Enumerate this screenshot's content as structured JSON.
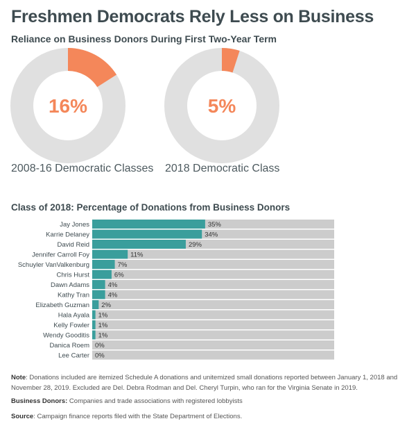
{
  "title": "Freshmen Democrats Rely Less on Business",
  "chart_data": [
    {
      "type": "pie",
      "title": "Reliance on Business Donors During First Two-Year Term",
      "donuts": [
        {
          "label": "2008-16 Democratic Classes",
          "value": 16,
          "display": "16%"
        },
        {
          "label": "2018 Democratic Class",
          "value": 5,
          "display": "5%"
        }
      ],
      "colors": {
        "value": "#f4875a",
        "rest": "#e0e0e0"
      }
    },
    {
      "type": "bar",
      "orientation": "horizontal",
      "title": "Class of 2018: Percentage of Donations from Business Donors",
      "categories": [
        "Jay Jones",
        "Karrie Delaney",
        "David Reid",
        "Jennifer Carroll Foy",
        "Schuyler VanValkenburg",
        "Chris Hurst",
        "Dawn Adams",
        "Kathy Tran",
        "Elizabeth Guzman",
        "Hala Ayala",
        "Kelly Fowler",
        "Wendy Gooditis",
        "Danica Roem",
        "Lee Carter"
      ],
      "values": [
        35,
        34,
        29,
        11,
        7,
        6,
        4,
        4,
        2,
        1,
        1,
        1,
        0,
        0
      ],
      "labels": [
        "35%",
        "34%",
        "29%",
        "11%",
        "7%",
        "6%",
        "4%",
        "4%",
        "2%",
        "1%",
        "1%",
        "1%",
        "0%",
        "0%"
      ],
      "xlim": [
        0,
        75
      ],
      "colors": {
        "bar": "#3a9e9c",
        "track": "#cccccc"
      }
    }
  ],
  "notes": {
    "note_label": "Note",
    "note_text": ": Donations included are itemized Schedule A donations and unitemized small donations reported between January 1, 2018 and November 28, 2019. Excluded are Del. Debra Rodman and Del. Cheryl Turpin, who ran for the Virginia Senate in 2019.",
    "bd_label": "Business Donors:",
    "bd_text": " Companies and trade associations with registered lobbyists",
    "src_label": "Source",
    "src_text": ": Campaign finance reports filed with the State Department of Elections."
  }
}
